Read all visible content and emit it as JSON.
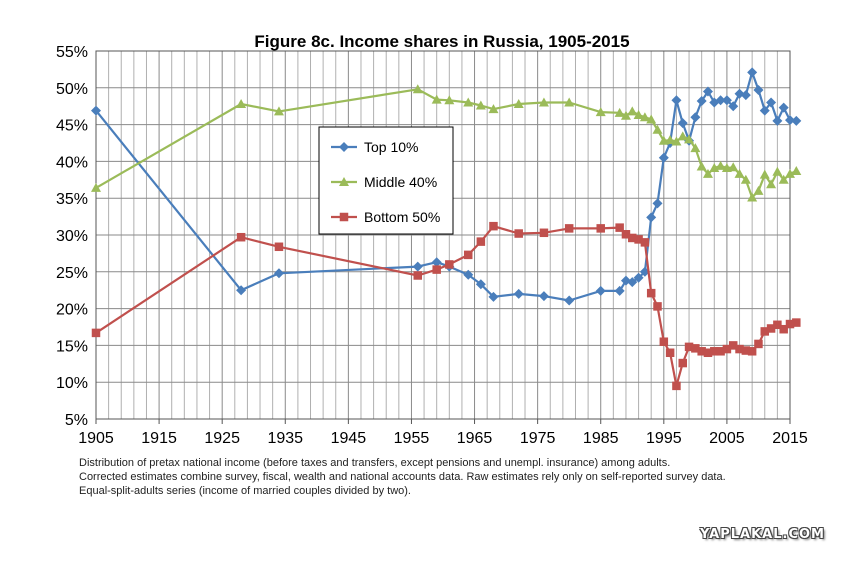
{
  "chart_data": {
    "type": "line",
    "title": "Figure 8c. Income shares in Russia, 1905-2015",
    "xlim": [
      1905,
      2015
    ],
    "ylim": [
      5,
      55
    ],
    "x_ticks": [
      1905,
      1915,
      1925,
      1935,
      1945,
      1955,
      1965,
      1975,
      1985,
      1995,
      2005,
      2015
    ],
    "y_ticks": [
      5,
      10,
      15,
      20,
      25,
      30,
      35,
      40,
      45,
      50,
      55
    ],
    "y_tick_labels": [
      "5%",
      "10%",
      "15%",
      "20%",
      "25%",
      "30%",
      "35%",
      "40%",
      "45%",
      "50%",
      "55%"
    ],
    "grid": true,
    "legend_position": "center-left",
    "series": [
      {
        "name": "Top 10%",
        "color": "#4a7ebb",
        "marker": "diamond",
        "points": [
          [
            1905,
            46.9
          ],
          [
            1928,
            22.5
          ],
          [
            1934,
            24.8
          ],
          [
            1956,
            25.7
          ],
          [
            1959,
            26.3
          ],
          [
            1961,
            25.7
          ],
          [
            1964,
            24.6
          ],
          [
            1966,
            23.3
          ],
          [
            1968,
            21.6
          ],
          [
            1972,
            22.0
          ],
          [
            1976,
            21.7
          ],
          [
            1980,
            21.1
          ],
          [
            1985,
            22.4
          ],
          [
            1988,
            22.4
          ],
          [
            1989,
            23.8
          ],
          [
            1990,
            23.6
          ],
          [
            1991,
            24.2
          ],
          [
            1992,
            25.0
          ],
          [
            1993,
            32.4
          ],
          [
            1994,
            34.3
          ],
          [
            1995,
            40.5
          ],
          [
            1996,
            42.5
          ],
          [
            1997,
            48.3
          ],
          [
            1998,
            45.2
          ],
          [
            1999,
            42.8
          ],
          [
            2000,
            46.0
          ],
          [
            2001,
            48.2
          ],
          [
            2002,
            49.5
          ],
          [
            2003,
            48.0
          ],
          [
            2004,
            48.3
          ],
          [
            2005,
            48.3
          ],
          [
            2006,
            47.5
          ],
          [
            2007,
            49.2
          ],
          [
            2008,
            49.0
          ],
          [
            2009,
            52.1
          ],
          [
            2010,
            49.7
          ],
          [
            2011,
            46.9
          ],
          [
            2012,
            48.0
          ],
          [
            2013,
            45.5
          ],
          [
            2014,
            47.3
          ],
          [
            2015,
            45.6
          ],
          [
            2016,
            45.5
          ]
        ]
      },
      {
        "name": "Middle 40%",
        "color": "#9bbb59",
        "marker": "triangle",
        "points": [
          [
            1905,
            36.4
          ],
          [
            1928,
            47.8
          ],
          [
            1934,
            46.8
          ],
          [
            1956,
            49.8
          ],
          [
            1959,
            48.4
          ],
          [
            1961,
            48.3
          ],
          [
            1964,
            48.0
          ],
          [
            1966,
            47.6
          ],
          [
            1968,
            47.1
          ],
          [
            1972,
            47.8
          ],
          [
            1976,
            48.0
          ],
          [
            1980,
            48.0
          ],
          [
            1985,
            46.7
          ],
          [
            1988,
            46.6
          ],
          [
            1989,
            46.2
          ],
          [
            1990,
            46.8
          ],
          [
            1991,
            46.3
          ],
          [
            1992,
            46.0
          ],
          [
            1993,
            45.7
          ],
          [
            1994,
            44.3
          ],
          [
            1995,
            42.8
          ],
          [
            1996,
            42.9
          ],
          [
            1997,
            42.7
          ],
          [
            1998,
            43.4
          ],
          [
            1999,
            43.0
          ],
          [
            2000,
            41.8
          ],
          [
            2001,
            39.3
          ],
          [
            2002,
            38.3
          ],
          [
            2003,
            39.1
          ],
          [
            2004,
            39.4
          ],
          [
            2005,
            39.1
          ],
          [
            2006,
            39.2
          ],
          [
            2007,
            38.3
          ],
          [
            2008,
            37.5
          ],
          [
            2009,
            35.1
          ],
          [
            2010,
            36.0
          ],
          [
            2011,
            38.2
          ],
          [
            2012,
            36.9
          ],
          [
            2013,
            38.6
          ],
          [
            2014,
            37.5
          ],
          [
            2015,
            38.3
          ],
          [
            2016,
            38.7
          ]
        ]
      },
      {
        "name": "Bottom 50%",
        "color": "#c0504d",
        "marker": "square",
        "points": [
          [
            1905,
            16.7
          ],
          [
            1928,
            29.7
          ],
          [
            1934,
            28.4
          ],
          [
            1956,
            24.5
          ],
          [
            1959,
            25.3
          ],
          [
            1961,
            26.0
          ],
          [
            1964,
            27.3
          ],
          [
            1966,
            29.1
          ],
          [
            1968,
            31.2
          ],
          [
            1972,
            30.2
          ],
          [
            1976,
            30.3
          ],
          [
            1980,
            30.9
          ],
          [
            1985,
            30.9
          ],
          [
            1988,
            31.0
          ],
          [
            1989,
            30.1
          ],
          [
            1990,
            29.6
          ],
          [
            1991,
            29.4
          ],
          [
            1992,
            29.0
          ],
          [
            1993,
            22.1
          ],
          [
            1994,
            20.3
          ],
          [
            1995,
            15.5
          ],
          [
            1996,
            14.0
          ],
          [
            1997,
            9.5
          ],
          [
            1998,
            12.6
          ],
          [
            1999,
            14.8
          ],
          [
            2000,
            14.6
          ],
          [
            2001,
            14.2
          ],
          [
            2002,
            14.0
          ],
          [
            2003,
            14.2
          ],
          [
            2004,
            14.2
          ],
          [
            2005,
            14.5
          ],
          [
            2006,
            15.0
          ],
          [
            2007,
            14.5
          ],
          [
            2008,
            14.3
          ],
          [
            2009,
            14.2
          ],
          [
            2010,
            15.2
          ],
          [
            2011,
            16.9
          ],
          [
            2012,
            17.3
          ],
          [
            2013,
            17.8
          ],
          [
            2014,
            17.2
          ],
          [
            2015,
            17.9
          ],
          [
            2016,
            18.1
          ]
        ]
      }
    ],
    "notes": [
      "Distribution of pretax national income (before taxes and transfers, except pensions and unempl. insurance) among adults.",
      "Corrected estimates combine survey, fiscal, wealth and national accounts data. Raw estimates rely only on self-reported survey data.",
      "Equal-split-adults series (income of married couples divided by two)."
    ]
  },
  "watermark": "YAPLAKAL.COM"
}
